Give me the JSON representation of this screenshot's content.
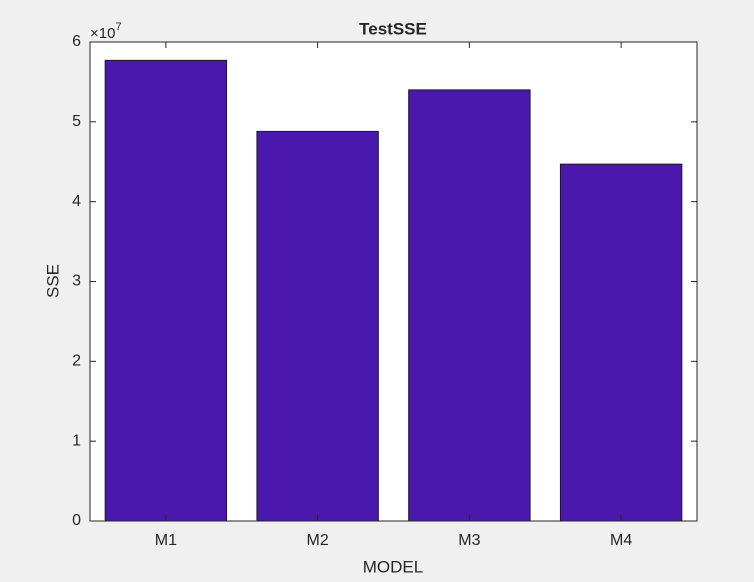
{
  "chart_data": {
    "type": "bar",
    "title": "TestSSE",
    "x_label": "MODEL",
    "y_label": "SSE",
    "y_multiplier": {
      "base": "×10",
      "exponent": "7"
    },
    "categories": [
      "M1",
      "M2",
      "M3",
      "M4"
    ],
    "values": [
      5.77,
      4.88,
      5.4,
      4.47
    ],
    "color": "#4a18ad",
    "ylim": [
      0,
      6
    ],
    "yticks": [
      0,
      1,
      2,
      3,
      4,
      5,
      6
    ],
    "grid": false
  }
}
